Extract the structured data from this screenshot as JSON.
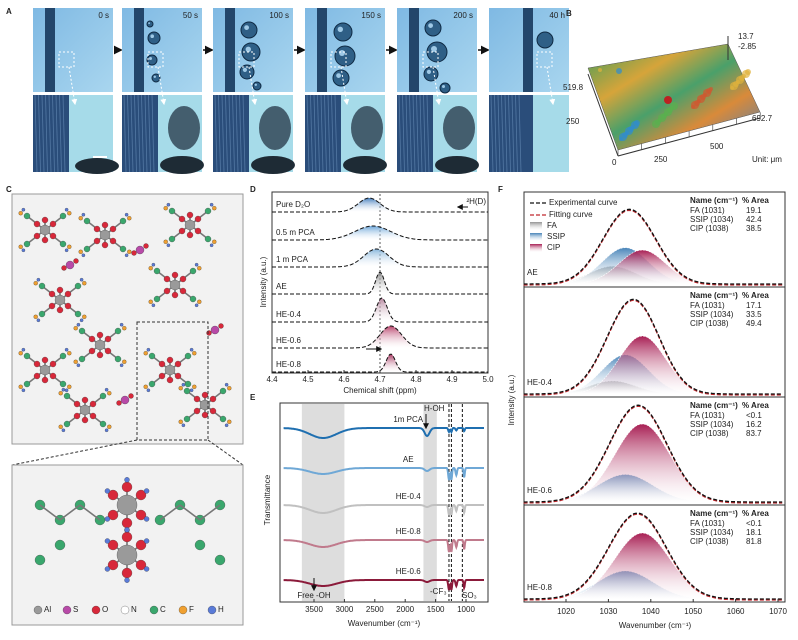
{
  "panel_a": {
    "label": "A",
    "times": [
      "0 s",
      "50 s",
      "100 s",
      "150 s",
      "200 s",
      "40 h"
    ]
  },
  "panel_b": {
    "label": "B",
    "z_max": "13.7",
    "z_min": "-2.85",
    "y_max": "519.8",
    "y_mid": "250",
    "origin": "0",
    "x_ticks": [
      "250",
      "500"
    ],
    "x_max": "692.7",
    "unit": "Unit: μm"
  },
  "panel_c": {
    "label": "C",
    "legend": [
      "Al",
      "S",
      "O",
      "N",
      "C",
      "F",
      "H"
    ]
  },
  "panel_d": {
    "label": "D",
    "samples": [
      "Pure D₂O",
      "0.5 m PCA",
      "1 m PCA",
      "AE",
      "HE-0.4",
      "HE-0.6",
      "HE-0.8"
    ],
    "nucleus": "²H(D)",
    "y_label": "Intensity (a.u.)",
    "x_label": "Chemical shift (ppm)",
    "x_ticks": [
      "4.4",
      "4.5",
      "4.6",
      "4.7",
      "4.8",
      "4.9",
      "5.0"
    ]
  },
  "panel_e": {
    "label": "E",
    "samples": [
      "1m PCA",
      "AE",
      "HE-0.4",
      "HE-0.8",
      "HE-0.6"
    ],
    "annotations": {
      "h_oh": "H-OH",
      "free_oh": "Free -OH",
      "cf3": "-CF₃",
      "so3": "SO₃"
    },
    "y_label": "Transmittance",
    "x_label": "Wavenumber (cm⁻¹)",
    "x_ticks": [
      "3500",
      "3000",
      "2500",
      "2000",
      "1500",
      "1000"
    ]
  },
  "panel_f": {
    "label": "F",
    "legend": [
      "Experimental curve",
      "Fitting curve",
      "FA",
      "SSIP",
      "CIP"
    ],
    "table_header": [
      "Name (cm⁻¹)",
      "% Area"
    ],
    "subpanels": [
      {
        "name": "AE",
        "rows": [
          [
            "FA (1031)",
            "19.1"
          ],
          [
            "SSIP (1034)",
            "42.4"
          ],
          [
            "CIP (1038)",
            "38.5"
          ]
        ]
      },
      {
        "name": "HE-0.4",
        "rows": [
          [
            "FA (1031)",
            "17.1"
          ],
          [
            "SSIP (1034)",
            "33.5"
          ],
          [
            "CIP (1038)",
            "49.4"
          ]
        ]
      },
      {
        "name": "HE-0.6",
        "rows": [
          [
            "FA (1031)",
            "<0.1"
          ],
          [
            "SSIP (1034)",
            "16.2"
          ],
          [
            "CIP (1038)",
            "83.7"
          ]
        ]
      },
      {
        "name": "HE-0.8",
        "rows": [
          [
            "FA (1031)",
            "<0.1"
          ],
          [
            "SSIP (1034)",
            "18.1"
          ],
          [
            "CIP (1038)",
            "81.8"
          ]
        ]
      }
    ],
    "y_label": "Intensity (a.u.)",
    "x_label": "Wavenumber (cm⁻¹)",
    "x_ticks": [
      "1020",
      "1030",
      "1040",
      "1050",
      "1060",
      "1070"
    ]
  }
}
